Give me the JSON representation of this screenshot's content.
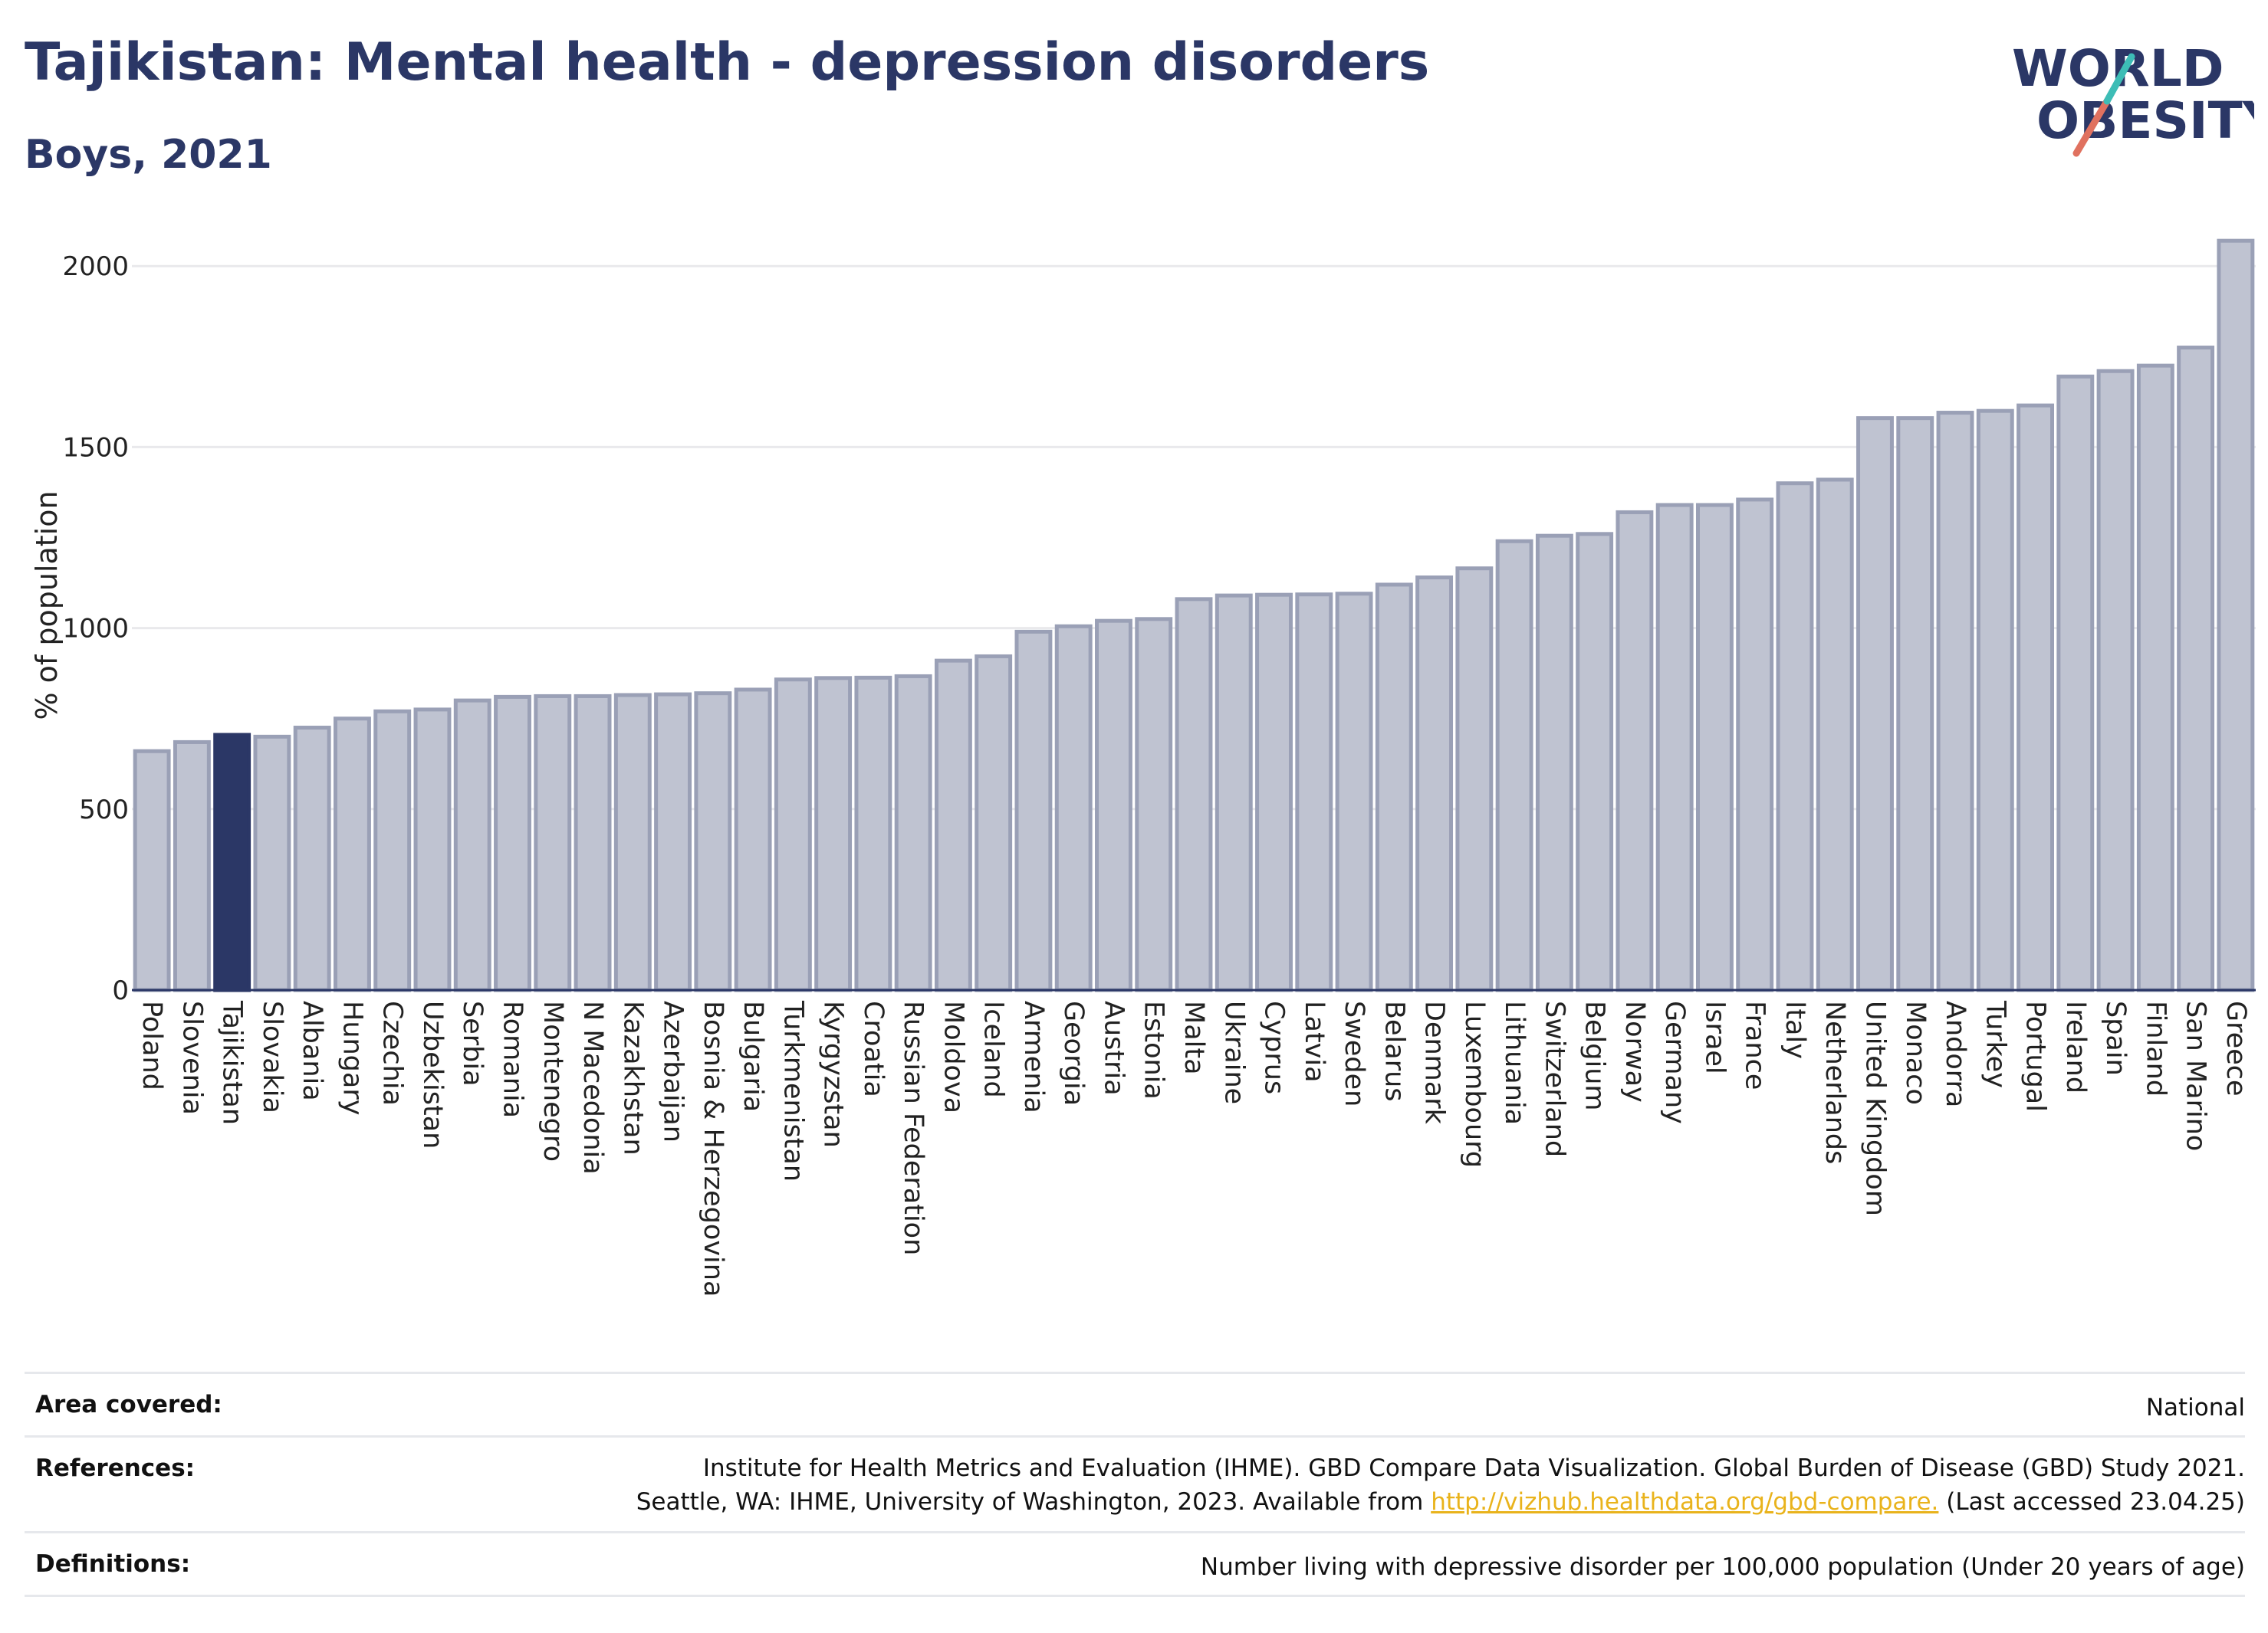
{
  "header": {
    "title": "Tajikistan: Mental health - depression disorders",
    "subtitle": "Boys, 2021"
  },
  "logo": {
    "line1": "WORLD",
    "line2": "OBESITY"
  },
  "chart_data": {
    "type": "bar",
    "title": "Tajikistan: Mental health - depression disorders",
    "subtitle": "Boys, 2021",
    "ylabel": "% of population",
    "xlabel": "",
    "ylim": [
      0,
      2100
    ],
    "yticks": [
      0,
      500,
      1000,
      1500,
      2000
    ],
    "grid": true,
    "highlight": "Tajikistan",
    "colors": {
      "bar": "#bfc3d1",
      "bar_border": "#9aa0b6",
      "highlight": "#2b3766",
      "grid": "#e9e9ec"
    },
    "categories": [
      "Poland",
      "Slovenia",
      "Tajikistan",
      "Slovakia",
      "Albania",
      "Hungary",
      "Czechia",
      "Uzbekistan",
      "Serbia",
      "Romania",
      "Montenegro",
      "N Macedonia",
      "Kazakhstan",
      "Azerbaijan",
      "Bosnia & Herzegovina",
      "Bulgaria",
      "Turkmenistan",
      "Kyrgyzstan",
      "Croatia",
      "Russian Federation",
      "Moldova",
      "Iceland",
      "Armenia",
      "Georgia",
      "Austria",
      "Estonia",
      "Malta",
      "Ukraine",
      "Cyprus",
      "Latvia",
      "Sweden",
      "Belarus",
      "Denmark",
      "Luxembourg",
      "Lithuania",
      "Switzerland",
      "Belgium",
      "Norway",
      "Germany",
      "Israel",
      "France",
      "Italy",
      "Netherlands",
      "United Kingdom",
      "Monaco",
      "Andorra",
      "Turkey",
      "Portugal",
      "Ireland",
      "Spain",
      "Finland",
      "San Marino",
      "Greece"
    ],
    "values": [
      660,
      685,
      705,
      700,
      725,
      750,
      770,
      775,
      800,
      810,
      812,
      812,
      815,
      817,
      820,
      830,
      858,
      862,
      863,
      867,
      910,
      922,
      990,
      1005,
      1020,
      1025,
      1080,
      1090,
      1092,
      1093,
      1095,
      1120,
      1140,
      1165,
      1240,
      1255,
      1260,
      1320,
      1340,
      1340,
      1355,
      1400,
      1410,
      1580,
      1580,
      1595,
      1600,
      1615,
      1695,
      1710,
      1725,
      1775,
      2070
    ]
  },
  "info": {
    "area_label": "Area covered:",
    "area_value": "National",
    "references_label": "References:",
    "references_line1": "Institute for Health Metrics and Evaluation (IHME). GBD Compare Data Visualization. Global Burden of Disease (GBD) Study 2021.",
    "references_line2_pre": "Seattle, WA: IHME, University of Washington, 2023. Available from",
    "references_link": "http://vizhub.healthdata.org/gbd-compare.",
    "references_line2_post": "(Last accessed 23.04.25)",
    "definitions_label": "Definitions:",
    "definitions_value": "Number living with depressive disorder per 100,000 population (Under 20 years of age)"
  }
}
